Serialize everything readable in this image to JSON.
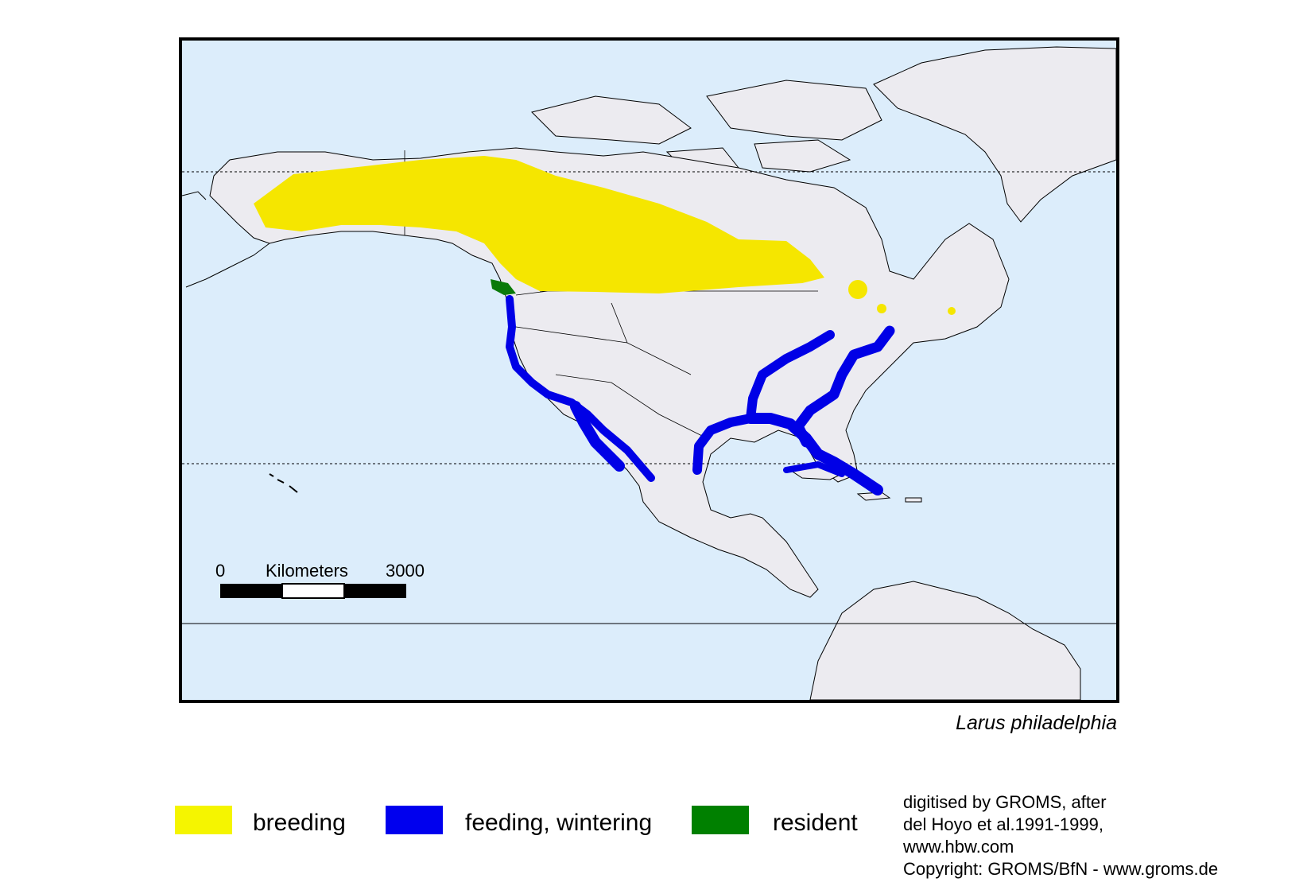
{
  "map": {
    "species": "Larus philadelphia",
    "colors": {
      "ocean": "#dcedfb",
      "land": "#ecebf0",
      "breeding": "#f5e600",
      "feeding_wintering": "#0000e6",
      "resident": "#0a7a0a"
    },
    "scale_bar": {
      "start_label": "0",
      "unit_label": "Kilometers",
      "end_label": "3000"
    }
  },
  "legend": {
    "items": [
      {
        "label": "breeding",
        "color": "#f5f500"
      },
      {
        "label": "feeding, wintering",
        "color": "#0000ee"
      },
      {
        "label": "resident",
        "color": "#008000"
      }
    ]
  },
  "credits": {
    "lines": [
      "digitised by GROMS, after",
      "del Hoyo et al.1991-1999,",
      "www.hbw.com",
      "Copyright: GROMS/BfN - www.groms.de"
    ]
  }
}
